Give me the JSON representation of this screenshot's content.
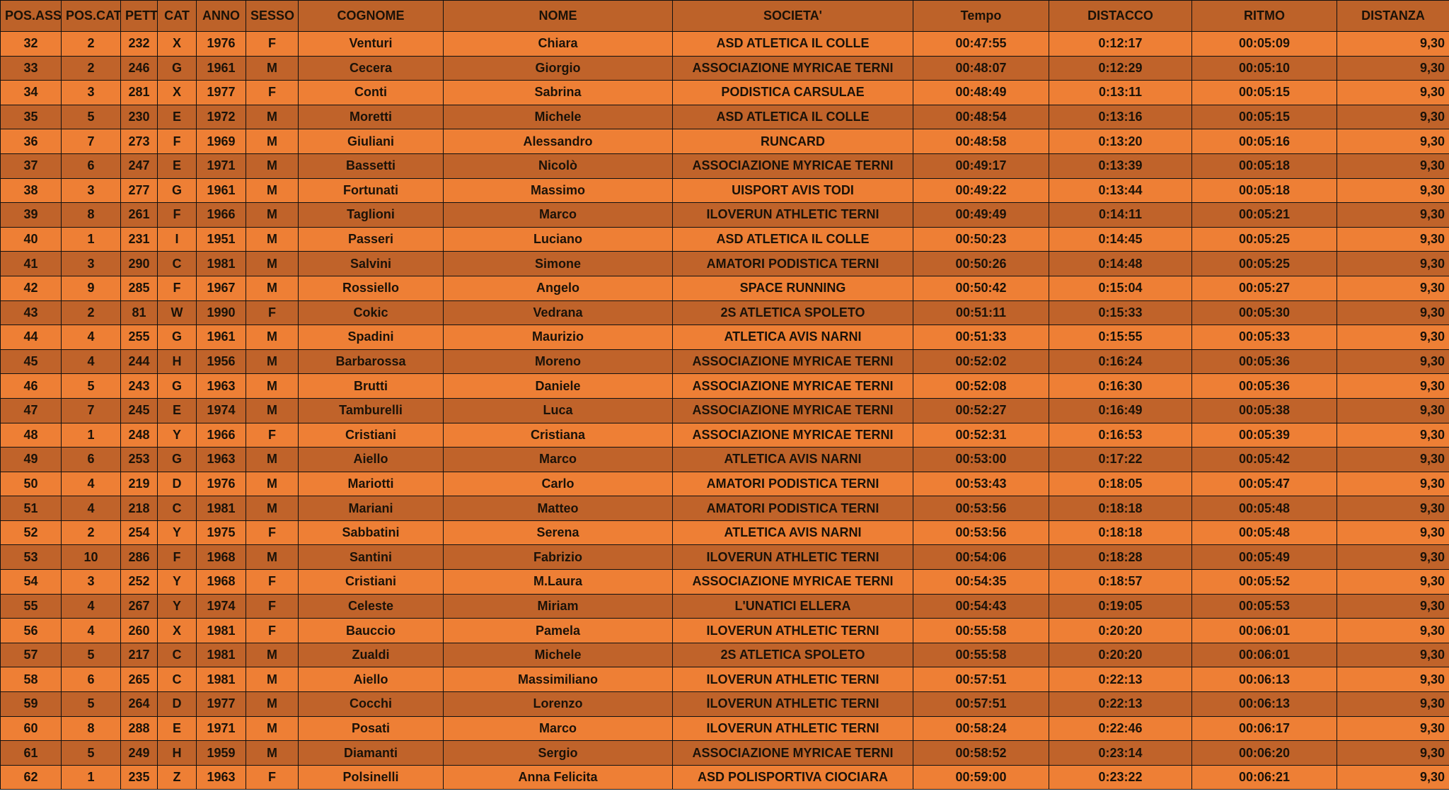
{
  "colors": {
    "header": "#bd6229",
    "row_light": "#ee7f35",
    "row_dark": "#c0632a"
  },
  "columns": [
    "POS.ASS.",
    "POS.CAT.",
    "PETT.",
    "CAT",
    "ANNO",
    "SESSO",
    "COGNOME",
    "NOME",
    "SOCIETA'",
    "Tempo",
    "DISTACCO",
    "RITMO",
    "DISTANZA"
  ],
  "rows": [
    [
      "32",
      "2",
      "232",
      "X",
      "1976",
      "F",
      "Venturi",
      "Chiara",
      "ASD ATLETICA IL COLLE",
      "00:47:55",
      "0:12:17",
      "00:05:09",
      "9,30"
    ],
    [
      "33",
      "2",
      "246",
      "G",
      "1961",
      "M",
      "Cecera",
      "Giorgio",
      "ASSOCIAZIONE MYRICAE TERNI",
      "00:48:07",
      "0:12:29",
      "00:05:10",
      "9,30"
    ],
    [
      "34",
      "3",
      "281",
      "X",
      "1977",
      "F",
      "Conti",
      "Sabrina",
      "PODISTICA CARSULAE",
      "00:48:49",
      "0:13:11",
      "00:05:15",
      "9,30"
    ],
    [
      "35",
      "5",
      "230",
      "E",
      "1972",
      "M",
      "Moretti",
      "Michele",
      "ASD ATLETICA IL COLLE",
      "00:48:54",
      "0:13:16",
      "00:05:15",
      "9,30"
    ],
    [
      "36",
      "7",
      "273",
      "F",
      "1969",
      "M",
      "Giuliani",
      "Alessandro",
      "RUNCARD",
      "00:48:58",
      "0:13:20",
      "00:05:16",
      "9,30"
    ],
    [
      "37",
      "6",
      "247",
      "E",
      "1971",
      "M",
      "Bassetti",
      "Nicolò",
      "ASSOCIAZIONE MYRICAE TERNI",
      "00:49:17",
      "0:13:39",
      "00:05:18",
      "9,30"
    ],
    [
      "38",
      "3",
      "277",
      "G",
      "1961",
      "M",
      "Fortunati",
      "Massimo",
      "UISPORT AVIS TODI",
      "00:49:22",
      "0:13:44",
      "00:05:18",
      "9,30"
    ],
    [
      "39",
      "8",
      "261",
      "F",
      "1966",
      "M",
      "Taglioni",
      "Marco",
      "ILOVERUN ATHLETIC TERNI",
      "00:49:49",
      "0:14:11",
      "00:05:21",
      "9,30"
    ],
    [
      "40",
      "1",
      "231",
      "I",
      "1951",
      "M",
      "Passeri",
      "Luciano",
      "ASD ATLETICA IL COLLE",
      "00:50:23",
      "0:14:45",
      "00:05:25",
      "9,30"
    ],
    [
      "41",
      "3",
      "290",
      "C",
      "1981",
      "M",
      "Salvini",
      "Simone",
      "AMATORI PODISTICA TERNI",
      "00:50:26",
      "0:14:48",
      "00:05:25",
      "9,30"
    ],
    [
      "42",
      "9",
      "285",
      "F",
      "1967",
      "M",
      "Rossiello",
      "Angelo",
      "SPACE RUNNING",
      "00:50:42",
      "0:15:04",
      "00:05:27",
      "9,30"
    ],
    [
      "43",
      "2",
      "81",
      "W",
      "1990",
      "F",
      "Cokic",
      "Vedrana",
      "2S ATLETICA SPOLETO",
      "00:51:11",
      "0:15:33",
      "00:05:30",
      "9,30"
    ],
    [
      "44",
      "4",
      "255",
      "G",
      "1961",
      "M",
      "Spadini",
      "Maurizio",
      "ATLETICA AVIS NARNI",
      "00:51:33",
      "0:15:55",
      "00:05:33",
      "9,30"
    ],
    [
      "45",
      "4",
      "244",
      "H",
      "1956",
      "M",
      "Barbarossa",
      "Moreno",
      "ASSOCIAZIONE MYRICAE TERNI",
      "00:52:02",
      "0:16:24",
      "00:05:36",
      "9,30"
    ],
    [
      "46",
      "5",
      "243",
      "G",
      "1963",
      "M",
      "Brutti",
      "Daniele",
      "ASSOCIAZIONE MYRICAE TERNI",
      "00:52:08",
      "0:16:30",
      "00:05:36",
      "9,30"
    ],
    [
      "47",
      "7",
      "245",
      "E",
      "1974",
      "M",
      "Tamburelli",
      "Luca",
      "ASSOCIAZIONE MYRICAE TERNI",
      "00:52:27",
      "0:16:49",
      "00:05:38",
      "9,30"
    ],
    [
      "48",
      "1",
      "248",
      "Y",
      "1966",
      "F",
      "Cristiani",
      "Cristiana",
      "ASSOCIAZIONE MYRICAE TERNI",
      "00:52:31",
      "0:16:53",
      "00:05:39",
      "9,30"
    ],
    [
      "49",
      "6",
      "253",
      "G",
      "1963",
      "M",
      "Aiello",
      "Marco",
      "ATLETICA AVIS NARNI",
      "00:53:00",
      "0:17:22",
      "00:05:42",
      "9,30"
    ],
    [
      "50",
      "4",
      "219",
      "D",
      "1976",
      "M",
      "Mariotti",
      "Carlo",
      "AMATORI PODISTICA TERNI",
      "00:53:43",
      "0:18:05",
      "00:05:47",
      "9,30"
    ],
    [
      "51",
      "4",
      "218",
      "C",
      "1981",
      "M",
      "Mariani",
      "Matteo",
      "AMATORI PODISTICA TERNI",
      "00:53:56",
      "0:18:18",
      "00:05:48",
      "9,30"
    ],
    [
      "52",
      "2",
      "254",
      "Y",
      "1975",
      "F",
      "Sabbatini",
      "Serena",
      "ATLETICA AVIS NARNI",
      "00:53:56",
      "0:18:18",
      "00:05:48",
      "9,30"
    ],
    [
      "53",
      "10",
      "286",
      "F",
      "1968",
      "M",
      "Santini",
      "Fabrizio",
      "ILOVERUN ATHLETIC TERNI",
      "00:54:06",
      "0:18:28",
      "00:05:49",
      "9,30"
    ],
    [
      "54",
      "3",
      "252",
      "Y",
      "1968",
      "F",
      "Cristiani",
      "M.Laura",
      "ASSOCIAZIONE MYRICAE TERNI",
      "00:54:35",
      "0:18:57",
      "00:05:52",
      "9,30"
    ],
    [
      "55",
      "4",
      "267",
      "Y",
      "1974",
      "F",
      "Celeste",
      "Miriam",
      "L'UNATICI ELLERA",
      "00:54:43",
      "0:19:05",
      "00:05:53",
      "9,30"
    ],
    [
      "56",
      "4",
      "260",
      "X",
      "1981",
      "F",
      "Bauccio",
      "Pamela",
      "ILOVERUN ATHLETIC TERNI",
      "00:55:58",
      "0:20:20",
      "00:06:01",
      "9,30"
    ],
    [
      "57",
      "5",
      "217",
      "C",
      "1981",
      "M",
      "Zualdi",
      "Michele",
      "2S ATLETICA SPOLETO",
      "00:55:58",
      "0:20:20",
      "00:06:01",
      "9,30"
    ],
    [
      "58",
      "6",
      "265",
      "C",
      "1981",
      "M",
      "Aiello",
      "Massimiliano",
      "ILOVERUN ATHLETIC TERNI",
      "00:57:51",
      "0:22:13",
      "00:06:13",
      "9,30"
    ],
    [
      "59",
      "5",
      "264",
      "D",
      "1977",
      "M",
      "Cocchi",
      "Lorenzo",
      "ILOVERUN ATHLETIC TERNI",
      "00:57:51",
      "0:22:13",
      "00:06:13",
      "9,30"
    ],
    [
      "60",
      "8",
      "288",
      "E",
      "1971",
      "M",
      "Posati",
      "Marco",
      "ILOVERUN ATHLETIC TERNI",
      "00:58:24",
      "0:22:46",
      "00:06:17",
      "9,30"
    ],
    [
      "61",
      "5",
      "249",
      "H",
      "1959",
      "M",
      "Diamanti",
      "Sergio",
      "ASSOCIAZIONE MYRICAE TERNI",
      "00:58:52",
      "0:23:14",
      "00:06:20",
      "9,30"
    ],
    [
      "62",
      "1",
      "235",
      "Z",
      "1963",
      "F",
      "Polsinelli",
      "Anna Felicita",
      "ASD POLISPORTIVA CIOCIARA",
      "00:59:00",
      "0:23:22",
      "00:06:21",
      "9,30"
    ]
  ]
}
